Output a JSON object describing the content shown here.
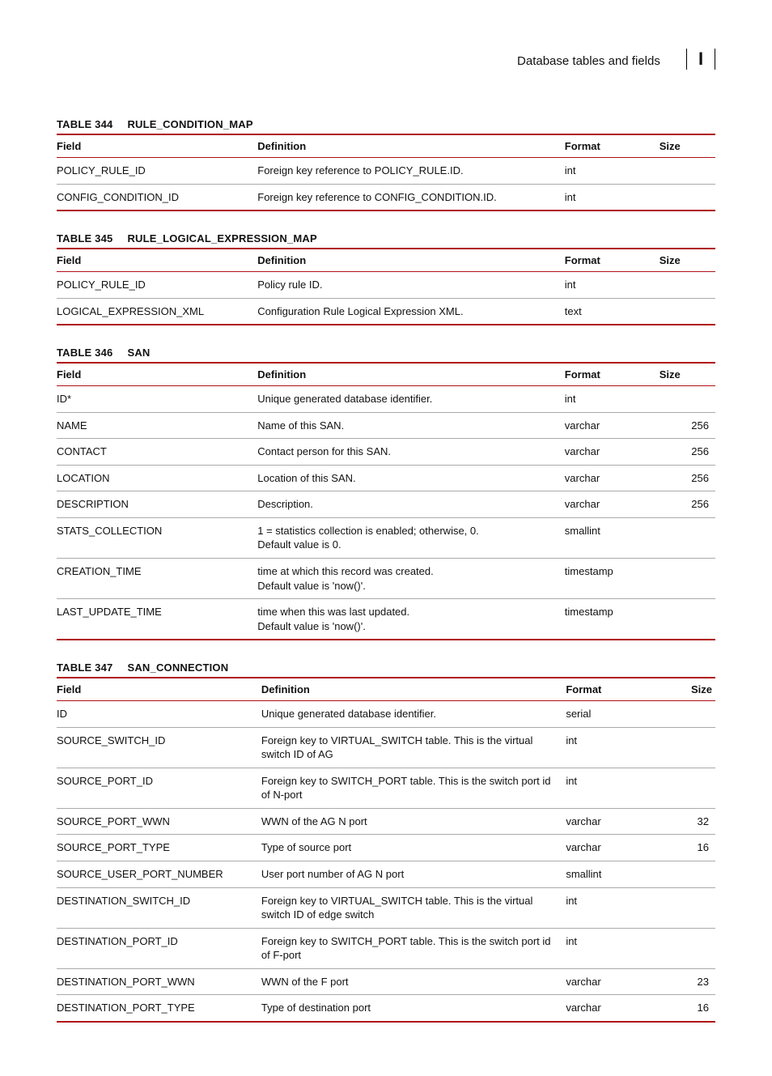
{
  "header": {
    "section_title": "Database tables and fields",
    "appendix": "I"
  },
  "col_labels": {
    "field": "Field",
    "definition": "Definition",
    "format": "Format",
    "size": "Size"
  },
  "tables": [
    {
      "number": "TABLE 344",
      "name": "RULE_CONDITION_MAP",
      "rows": [
        {
          "field": "POLICY_RULE_ID",
          "def": "Foreign key reference to POLICY_RULE.ID.",
          "format": "int",
          "size": ""
        },
        {
          "field": "CONFIG_CONDITION_ID",
          "def": "Foreign key reference to CONFIG_CONDITION.ID.",
          "format": "int",
          "size": ""
        }
      ]
    },
    {
      "number": "TABLE 345",
      "name": "RULE_LOGICAL_EXPRESSION_MAP",
      "rows": [
        {
          "field": "POLICY_RULE_ID",
          "def": "Policy rule ID.",
          "format": "int",
          "size": ""
        },
        {
          "field": "LOGICAL_EXPRESSION_XML",
          "def": "Configuration Rule Logical Expression XML.",
          "format": "text",
          "size": ""
        }
      ]
    },
    {
      "number": "TABLE 346",
      "name": "SAN",
      "rows": [
        {
          "field": "ID*",
          "def": "Unique generated database identifier.",
          "format": "int",
          "size": ""
        },
        {
          "field": "NAME",
          "def": "Name of this SAN.",
          "format": "varchar",
          "size": "256"
        },
        {
          "field": "CONTACT",
          "def": "Contact person for this SAN.",
          "format": "varchar",
          "size": "256"
        },
        {
          "field": "LOCATION",
          "def": "Location of this SAN.",
          "format": "varchar",
          "size": "256"
        },
        {
          "field": "DESCRIPTION",
          "def": "Description.",
          "format": "varchar",
          "size": "256"
        },
        {
          "field": "STATS_COLLECTION",
          "def": "1 = statistics collection is enabled; otherwise, 0.\nDefault value is 0.",
          "format": "smallint",
          "size": ""
        },
        {
          "field": "CREATION_TIME",
          "def": "time at which this record was created.\nDefault value is 'now()'.",
          "format": "timestamp",
          "size": ""
        },
        {
          "field": "LAST_UPDATE_TIME",
          "def": "time when this was last updated.\nDefault value is 'now()'.",
          "format": "timestamp",
          "size": ""
        }
      ]
    },
    {
      "number": "TABLE 347",
      "name": "SAN_CONNECTION",
      "wide": true,
      "rows": [
        {
          "field": "ID",
          "def": "Unique generated database identifier.",
          "format": "serial",
          "size": ""
        },
        {
          "field": "SOURCE_SWITCH_ID",
          "def": "Foreign key to VIRTUAL_SWITCH table. This is the virtual switch ID of AG",
          "format": "int",
          "size": ""
        },
        {
          "field": "SOURCE_PORT_ID",
          "def": "Foreign key to SWITCH_PORT table. This is the switch port id of N-port",
          "format": "int",
          "size": ""
        },
        {
          "field": "SOURCE_PORT_WWN",
          "def": "WWN of the AG N port",
          "format": "varchar",
          "size": "32"
        },
        {
          "field": "SOURCE_PORT_TYPE",
          "def": "Type of source port",
          "format": "varchar",
          "size": "16"
        },
        {
          "field": "SOURCE_USER_PORT_NUMBER",
          "def": "User port number of AG N port",
          "format": "smallint",
          "size": ""
        },
        {
          "field": "DESTINATION_SWITCH_ID",
          "def": "Foreign key to VIRTUAL_SWITCH table. This is the virtual switch ID of edge switch",
          "format": "int",
          "size": ""
        },
        {
          "field": "DESTINATION_PORT_ID",
          "def": "Foreign key to SWITCH_PORT table. This is the switch port id of F-port",
          "format": "int",
          "size": ""
        },
        {
          "field": "DESTINATION_PORT_WWN",
          "def": "WWN of the F port",
          "format": "varchar",
          "size": "23"
        },
        {
          "field": "DESTINATION_PORT_TYPE",
          "def": "Type of destination port",
          "format": "varchar",
          "size": "16"
        }
      ]
    }
  ]
}
